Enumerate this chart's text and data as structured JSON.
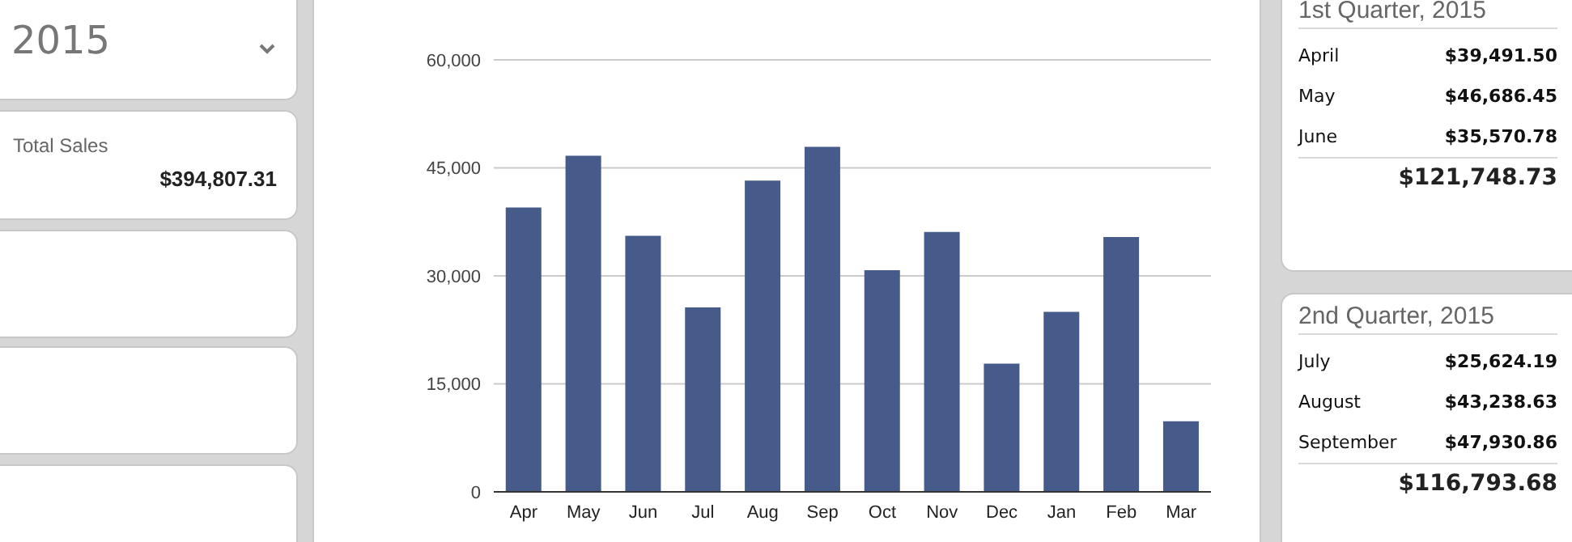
{
  "chart_data": [
    {
      "type": "other",
      "title": "2015"
    },
    {
      "type": "other",
      "title": "Total Sales",
      "annotations": [
        "$394,807.31"
      ]
    },
    {
      "type": "bar",
      "categories": [
        "Apr",
        "May",
        "Jun",
        "Jul",
        "Aug",
        "Sep",
        "Oct",
        "Nov",
        "Dec",
        "Jan",
        "Feb",
        "Mar"
      ],
      "values": [
        39491.5,
        46686.45,
        35570.78,
        25624.19,
        43238.63,
        47930.86,
        30800,
        36100,
        17800,
        25000,
        35400,
        9800
      ],
      "color": "#465b8a",
      "ylim": [
        0,
        60000
      ],
      "yticks": [
        {
          "value": 0,
          "label": "0"
        },
        {
          "value": 15000,
          "label": "15,000"
        },
        {
          "value": 30000,
          "label": "30,000"
        },
        {
          "value": 45000,
          "label": "45,000"
        },
        {
          "value": 60000,
          "label": "60,000"
        }
      ],
      "grid": "y",
      "legend": false
    },
    {
      "type": "other",
      "title": "1st Quarter, 2015",
      "annotations": [
        "April",
        "$39,491.50",
        "May",
        "$46,686.45",
        "June",
        "$35,570.78",
        "$121,748.73"
      ]
    },
    {
      "type": "other",
      "title": "2nd Quarter, 2015",
      "annotations": [
        "July",
        "$25,624.19",
        "August",
        "$43,238.63",
        "September",
        "$47,930.86",
        "$116,793.68"
      ]
    }
  ]
}
